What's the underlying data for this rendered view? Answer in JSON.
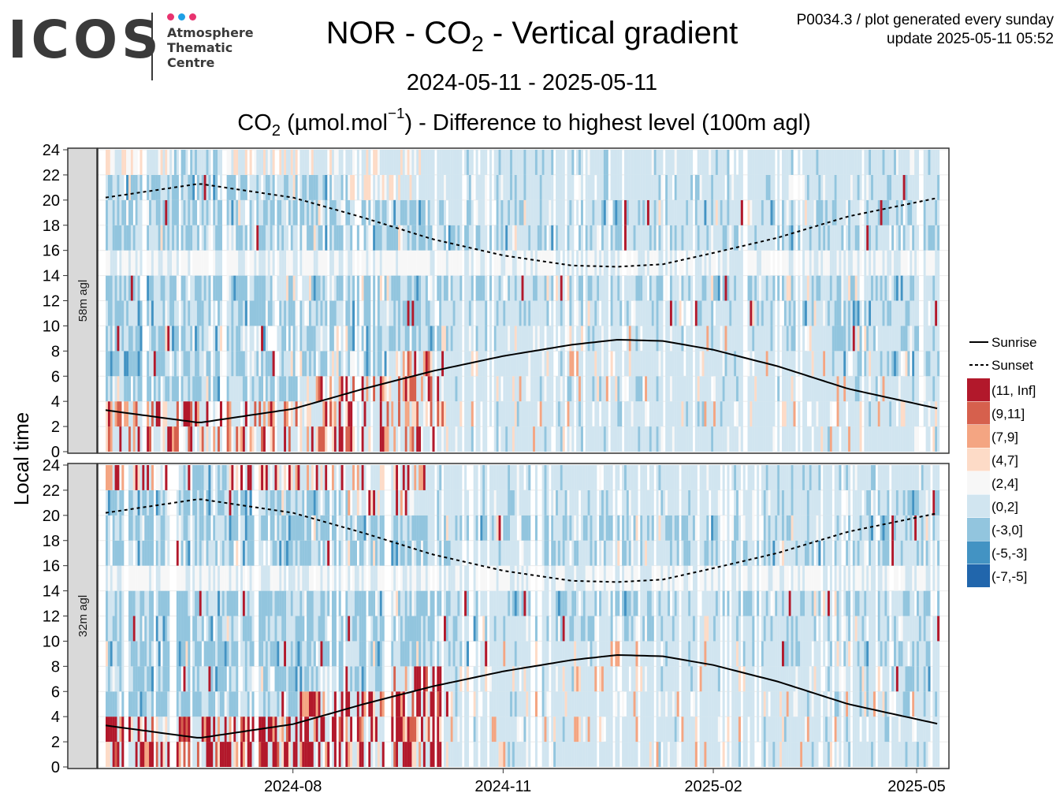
{
  "header": {
    "logo_text": "ICOS",
    "logo_subtitle": [
      "Atmosphere",
      "Thematic",
      "Centre"
    ],
    "logo_dot_colors": [
      "#e8336f",
      "#1ea0e6",
      "#e8336f"
    ],
    "title_prefix": "NOR - CO",
    "title_sub": "2",
    "title_suffix": " - Vertical gradient",
    "meta_line1": "P0034.3 / plot generated every sunday",
    "meta_line2": "update  2025-05-11 05:52",
    "date_range": "2024-05-11 - 2025-05-11",
    "subtitle_prefix": "CO",
    "subtitle_sub": "2",
    "subtitle_mid": " (µmol.mol",
    "subtitle_sup": "−1",
    "subtitle_suffix": ") - Difference to highest level (100m agl)"
  },
  "chart_data": {
    "type": "heatmap",
    "ylabel": "Local time",
    "x_range": [
      "2024-05-11",
      "2025-05-11"
    ],
    "x_ticks": [
      "2024-08",
      "2024-11",
      "2025-02",
      "2025-05"
    ],
    "y_range": [
      0,
      24
    ],
    "y_ticks": [
      0,
      2,
      4,
      6,
      8,
      10,
      12,
      14,
      16,
      18,
      20,
      22,
      24
    ],
    "grid": true,
    "legend_position": "right",
    "panels": [
      {
        "label": "58m agl"
      },
      {
        "label": "32m agl"
      }
    ],
    "bins": [
      {
        "label": "(11, Inf]",
        "color": "#b2182b"
      },
      {
        "label": "(9,11]",
        "color": "#d6604d"
      },
      {
        "label": "(7,9]",
        "color": "#f4a582"
      },
      {
        "label": "(4,7]",
        "color": "#fddbc7"
      },
      {
        "label": "(2,4]",
        "color": "#f7f7f7"
      },
      {
        "label": "(0,2]",
        "color": "#d1e5f0"
      },
      {
        "label": "(-3,0]",
        "color": "#92c5de"
      },
      {
        "label": "(-5,-3]",
        "color": "#4393c3"
      },
      {
        "label": "(-7,-5]",
        "color": "#2166ac"
      }
    ],
    "lines": [
      {
        "name": "Sunrise",
        "style": "solid",
        "color": "#000000",
        "points": [
          [
            "2024-05-11",
            3.3
          ],
          [
            "2024-06-21",
            2.3
          ],
          [
            "2024-08-01",
            3.4
          ],
          [
            "2024-09-01",
            5.0
          ],
          [
            "2024-10-01",
            6.4
          ],
          [
            "2024-11-01",
            7.6
          ],
          [
            "2024-12-01",
            8.5
          ],
          [
            "2024-12-21",
            8.9
          ],
          [
            "2025-01-10",
            8.8
          ],
          [
            "2025-02-01",
            8.1
          ],
          [
            "2025-03-01",
            6.8
          ],
          [
            "2025-04-01",
            5.0
          ],
          [
            "2025-05-11",
            3.4
          ]
        ]
      },
      {
        "name": "Sunset",
        "style": "dashed",
        "color": "#000000",
        "points": [
          [
            "2024-05-11",
            20.2
          ],
          [
            "2024-06-21",
            21.3
          ],
          [
            "2024-08-01",
            20.2
          ],
          [
            "2024-09-01",
            18.6
          ],
          [
            "2024-10-01",
            16.9
          ],
          [
            "2024-11-01",
            15.6
          ],
          [
            "2024-12-01",
            14.8
          ],
          [
            "2024-12-21",
            14.7
          ],
          [
            "2025-01-10",
            14.9
          ],
          [
            "2025-02-01",
            15.8
          ],
          [
            "2025-03-01",
            17.0
          ],
          [
            "2025-04-01",
            18.7
          ],
          [
            "2025-05-11",
            20.2
          ]
        ]
      }
    ]
  }
}
